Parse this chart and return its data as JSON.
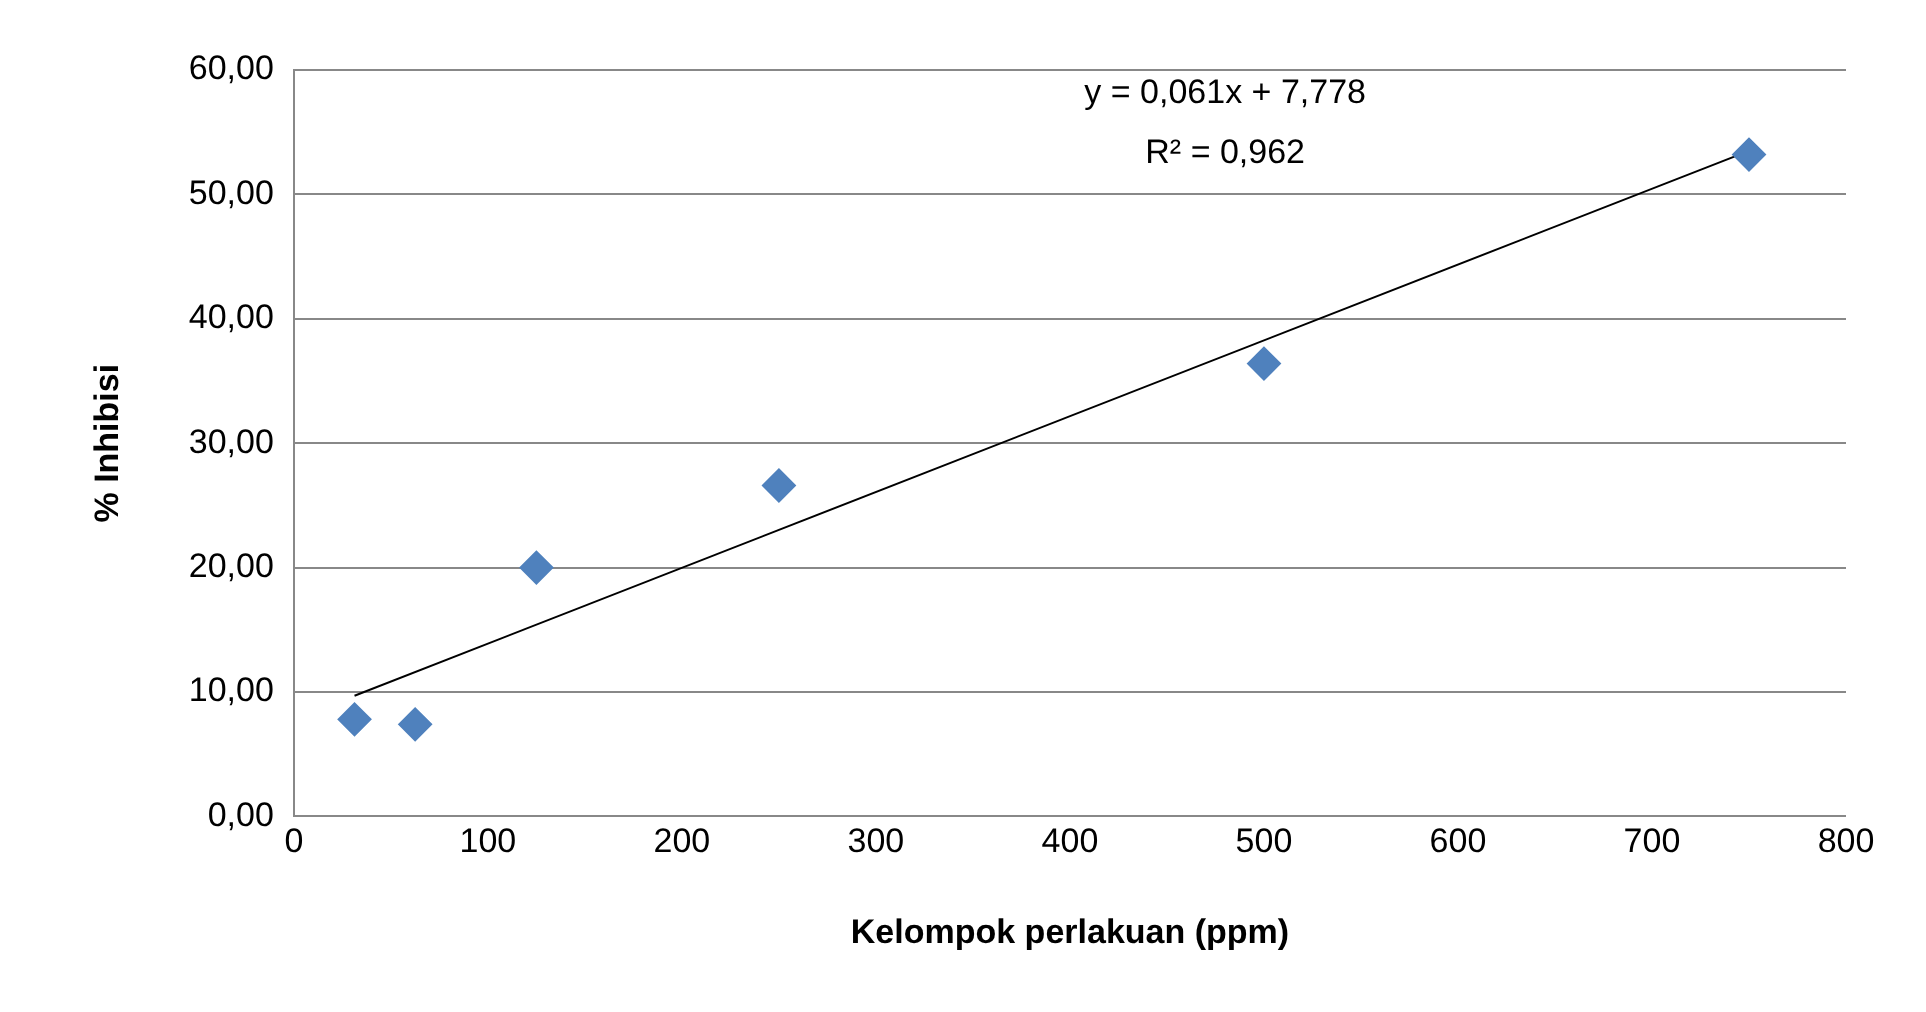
{
  "chart_data": {
    "type": "scatter",
    "xlabel": "Kelompok perlakuan (ppm)",
    "ylabel": "% Inhibisi",
    "annotations": [
      "y = 0,061x + 7,778",
      "R² = 0,962"
    ],
    "series": [
      {
        "type": "scatter",
        "x": [
          31.25,
          62.5,
          125,
          250,
          500,
          750
        ],
        "values": [
          7.8,
          7.4,
          20.0,
          26.6,
          36.4,
          53.2
        ],
        "color": "#4f81bd",
        "marker": "diamond"
      },
      {
        "type": "line",
        "x": [
          31.25,
          750
        ],
        "values": [
          9.7,
          53.5
        ],
        "color": "#000000",
        "marker": "none",
        "line_style": "solid"
      }
    ],
    "xlim": [
      0,
      800
    ],
    "xticks": [
      0,
      100,
      200,
      300,
      400,
      500,
      600,
      700,
      800
    ],
    "ylim": [
      0,
      60
    ],
    "yticks": [
      {
        "value": 0,
        "label": "0,00"
      },
      {
        "value": 10,
        "label": "10,00"
      },
      {
        "value": 20,
        "label": "20,00"
      },
      {
        "value": 30,
        "label": "30,00"
      },
      {
        "value": 40,
        "label": "40,00"
      },
      {
        "value": 50,
        "label": "50,00"
      },
      {
        "value": 60,
        "label": "60,00"
      }
    ],
    "grid": "y",
    "legend": false
  }
}
